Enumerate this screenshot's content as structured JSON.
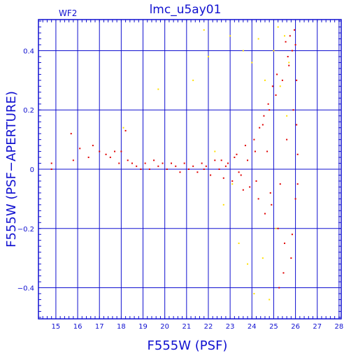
{
  "chart_data": {
    "type": "scatter",
    "title": "lmc_u5ay01",
    "subtitle": "WF2",
    "xlabel": "F555W (PSF)",
    "ylabel": "F555W (PSF−APERTURE)",
    "xlim": [
      14.2,
      28.1
    ],
    "ylim": [
      -0.505,
      0.505
    ],
    "x_ticks": [
      15,
      16,
      17,
      18,
      19,
      20,
      21,
      22,
      23,
      24,
      25,
      26,
      27,
      28
    ],
    "y_ticks": [
      -0.4,
      -0.2,
      0,
      0.2,
      0.4
    ],
    "y_tick_labels": [
      "−0.4",
      "−0.2",
      "0",
      "0.2",
      "0.4"
    ],
    "grid": true,
    "colors": {
      "axis": "#1010d0",
      "grid": "#1010d0",
      "series_main": "#e00000",
      "series_secondary": "#ffe000"
    },
    "series": [
      {
        "color": "#e00000",
        "points": [
          [
            14.8,
            0.02
          ],
          [
            14.8,
            0.0
          ],
          [
            15.7,
            0.12
          ],
          [
            15.8,
            0.03
          ],
          [
            16.1,
            0.07
          ],
          [
            16.5,
            0.04
          ],
          [
            16.7,
            0.08
          ],
          [
            17.0,
            0.06
          ],
          [
            17.3,
            0.05
          ],
          [
            17.5,
            0.04
          ],
          [
            17.7,
            0.06
          ],
          [
            17.9,
            0.02
          ],
          [
            18.0,
            0.06
          ],
          [
            18.2,
            0.13
          ],
          [
            18.3,
            0.03
          ],
          [
            18.5,
            0.02
          ],
          [
            18.7,
            0.01
          ],
          [
            18.9,
            0.0
          ],
          [
            19.1,
            0.02
          ],
          [
            19.3,
            0.0
          ],
          [
            19.5,
            0.03
          ],
          [
            19.7,
            0.01
          ],
          [
            19.9,
            0.02
          ],
          [
            20.1,
            0.0
          ],
          [
            20.3,
            0.02
          ],
          [
            20.5,
            0.01
          ],
          [
            20.7,
            -0.01
          ],
          [
            20.9,
            0.02
          ],
          [
            21.1,
            0.0
          ],
          [
            21.3,
            0.01
          ],
          [
            21.5,
            -0.01
          ],
          [
            21.7,
            0.02
          ],
          [
            21.9,
            0.01
          ],
          [
            22.1,
            -0.02
          ],
          [
            22.3,
            0.03
          ],
          [
            22.5,
            0.0
          ],
          [
            22.7,
            -0.03
          ],
          [
            22.9,
            0.02
          ],
          [
            23.1,
            -0.04
          ],
          [
            23.3,
            0.05
          ],
          [
            23.5,
            -0.02
          ],
          [
            23.7,
            0.08
          ],
          [
            23.9,
            -0.06
          ],
          [
            24.1,
            0.1
          ],
          [
            24.3,
            -0.1
          ],
          [
            24.5,
            0.15
          ],
          [
            24.6,
            -0.15
          ],
          [
            24.8,
            0.2
          ],
          [
            24.9,
            -0.12
          ],
          [
            25.1,
            0.25
          ],
          [
            25.2,
            -0.2
          ],
          [
            25.4,
            0.3
          ],
          [
            25.5,
            -0.25
          ],
          [
            25.7,
            0.35
          ],
          [
            25.8,
            -0.3
          ],
          [
            26.0,
            0.42
          ],
          [
            26.0,
            -0.1
          ],
          [
            25.9,
            0.2
          ],
          [
            25.6,
            0.1
          ],
          [
            25.3,
            -0.05
          ],
          [
            24.7,
            0.06
          ],
          [
            24.2,
            -0.04
          ],
          [
            23.8,
            0.03
          ],
          [
            23.4,
            -0.01
          ],
          [
            22.8,
            0.01
          ],
          [
            25.95,
            0.47
          ],
          [
            25.85,
            0.4
          ],
          [
            25.75,
            0.45
          ],
          [
            25.65,
            0.38
          ],
          [
            25.55,
            0.43
          ],
          [
            26.05,
            0.3
          ],
          [
            25.15,
            0.32
          ],
          [
            24.95,
            0.28
          ],
          [
            24.75,
            0.22
          ],
          [
            24.55,
            0.18
          ],
          [
            24.35,
            0.14
          ],
          [
            25.45,
            -0.35
          ],
          [
            25.25,
            -0.4
          ],
          [
            25.85,
            -0.22
          ],
          [
            26.1,
            0.05
          ],
          [
            26.1,
            -0.05
          ],
          [
            26.05,
            0.15
          ],
          [
            24.85,
            -0.08
          ],
          [
            24.15,
            0.06
          ],
          [
            23.6,
            -0.07
          ],
          [
            23.2,
            0.04
          ],
          [
            22.6,
            0.03
          ],
          [
            21.8,
            0.0
          ]
        ]
      },
      {
        "color": "#ffe000",
        "points": [
          [
            18.1,
            0.14
          ],
          [
            19.7,
            0.27
          ],
          [
            21.3,
            0.3
          ],
          [
            21.8,
            0.47
          ],
          [
            22.0,
            0.38
          ],
          [
            22.3,
            0.06
          ],
          [
            22.7,
            -0.12
          ],
          [
            23.0,
            0.45
          ],
          [
            23.1,
            -0.05
          ],
          [
            23.4,
            -0.25
          ],
          [
            23.6,
            0.4
          ],
          [
            23.8,
            -0.32
          ],
          [
            24.0,
            0.36
          ],
          [
            24.1,
            -0.42
          ],
          [
            24.3,
            0.44
          ],
          [
            24.5,
            -0.3
          ],
          [
            24.6,
            0.3
          ],
          [
            24.8,
            -0.44
          ],
          [
            25.0,
            0.4
          ],
          [
            25.1,
            -0.2
          ],
          [
            25.2,
            0.48
          ],
          [
            25.3,
            0.28
          ],
          [
            25.5,
            0.45
          ],
          [
            25.6,
            0.18
          ],
          [
            25.7,
            0.36
          ]
        ]
      }
    ]
  }
}
